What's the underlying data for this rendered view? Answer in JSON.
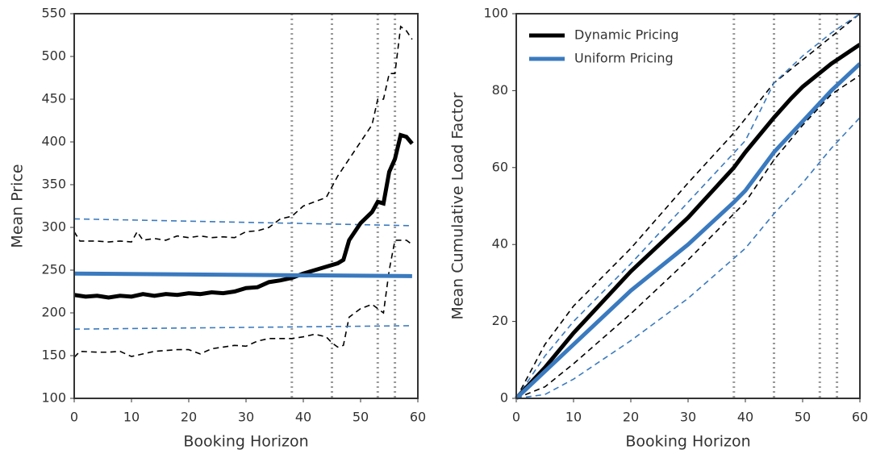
{
  "chart_data": [
    {
      "type": "line",
      "xlabel": "Booking Horizon",
      "ylabel": "Mean Price",
      "xlim": [
        0,
        60
      ],
      "ylim": [
        100,
        550
      ],
      "xticks": [
        0,
        10,
        20,
        30,
        40,
        50,
        60
      ],
      "yticks": [
        100,
        150,
        200,
        250,
        300,
        350,
        400,
        450,
        500,
        550
      ],
      "vlines": [
        38,
        45,
        53,
        56
      ],
      "series": [
        {
          "color": "#000000",
          "dashed": true,
          "x": [
            0,
            1,
            4,
            6,
            8,
            10,
            11,
            12,
            14,
            16,
            18,
            20,
            22,
            24,
            26,
            28,
            30,
            32,
            34,
            36,
            38,
            40,
            42,
            44,
            46,
            48,
            50,
            52,
            53,
            54,
            55,
            56,
            57,
            58,
            59
          ],
          "values": [
            295,
            284,
            284,
            283,
            284,
            283,
            295,
            285,
            287,
            285,
            290,
            288,
            290,
            288,
            289,
            288,
            295,
            296,
            300,
            310,
            313,
            325,
            330,
            335,
            360,
            380,
            400,
            420,
            450,
            450,
            480,
            480,
            535,
            530,
            520
          ]
        },
        {
          "color": "#000000",
          "dashed": true,
          "x": [
            0,
            1,
            4,
            6,
            8,
            10,
            12,
            14,
            16,
            18,
            20,
            22,
            24,
            26,
            28,
            30,
            32,
            34,
            36,
            38,
            40,
            42,
            44,
            45,
            46,
            47,
            48,
            50,
            52,
            54,
            55,
            56,
            58,
            59
          ],
          "values": [
            148,
            155,
            154,
            154,
            155,
            149,
            152,
            155,
            156,
            157,
            157,
            152,
            158,
            160,
            162,
            161,
            167,
            170,
            170,
            170,
            172,
            175,
            172,
            165,
            160,
            162,
            195,
            205,
            210,
            200,
            250,
            285,
            285,
            280
          ]
        },
        {
          "color": "#3a7abf",
          "dashed": true,
          "x": [
            0,
            59
          ],
          "values": [
            310,
            302
          ]
        },
        {
          "color": "#3a7abf",
          "dashed": true,
          "x": [
            0,
            59
          ],
          "values": [
            181,
            185
          ]
        },
        {
          "color": "#000000",
          "dashed": false,
          "x": [
            0,
            2,
            4,
            6,
            8,
            10,
            12,
            14,
            16,
            18,
            20,
            22,
            24,
            26,
            28,
            30,
            32,
            34,
            36,
            38,
            40,
            42,
            44,
            46,
            47,
            48,
            50,
            52,
            53,
            54,
            55,
            56,
            57,
            58,
            59
          ],
          "values": [
            221,
            219,
            220,
            218,
            220,
            219,
            222,
            220,
            222,
            221,
            223,
            222,
            224,
            223,
            225,
            229,
            230,
            236,
            238,
            241,
            246,
            250,
            254,
            258,
            262,
            285,
            305,
            318,
            330,
            328,
            365,
            380,
            408,
            406,
            398
          ]
        },
        {
          "color": "#3a7abf",
          "dashed": false,
          "x": [
            0,
            59
          ],
          "values": [
            246,
            243
          ]
        }
      ]
    },
    {
      "type": "line",
      "xlabel": "Booking Horizon",
      "ylabel": "Mean Cumulative Load Factor",
      "xlim": [
        0,
        60
      ],
      "ylim": [
        0,
        100
      ],
      "xticks": [
        0,
        10,
        20,
        30,
        40,
        50,
        60
      ],
      "yticks": [
        0,
        20,
        40,
        60,
        80,
        100
      ],
      "vlines": [
        38,
        45,
        53,
        56
      ],
      "legend": "upper left",
      "series": [
        {
          "color": "#000000",
          "dashed": true,
          "x": [
            0,
            5,
            10,
            20,
            30,
            38,
            45,
            50,
            55,
            60
          ],
          "values": [
            0,
            14,
            24,
            39,
            56,
            69,
            82,
            88,
            94,
            100
          ]
        },
        {
          "color": "#000000",
          "dashed": true,
          "x": [
            0,
            5,
            10,
            20,
            30,
            40,
            45,
            50,
            55,
            60
          ],
          "values": [
            0,
            3,
            9,
            22,
            36,
            51,
            62,
            71,
            79,
            84
          ]
        },
        {
          "color": "#3a7abf",
          "dashed": true,
          "x": [
            0,
            5,
            10,
            20,
            30,
            40,
            45,
            50,
            55,
            60
          ],
          "values": [
            0,
            11,
            20,
            35,
            51,
            67,
            82,
            89,
            95,
            100
          ]
        },
        {
          "color": "#3a7abf",
          "dashed": true,
          "x": [
            0,
            5,
            10,
            20,
            30,
            40,
            45,
            50,
            55,
            60
          ],
          "values": [
            0,
            1,
            5,
            15,
            26,
            39,
            48,
            56,
            65,
            73
          ]
        },
        {
          "name": "Dynamic Pricing",
          "color": "#000000",
          "dashed": false,
          "x": [
            0,
            5,
            10,
            20,
            30,
            38,
            40,
            45,
            48,
            50,
            55,
            60
          ],
          "values": [
            0,
            8,
            17,
            33,
            47,
            60,
            64,
            73,
            78,
            81,
            87,
            92
          ]
        },
        {
          "name": "Uniform Pricing",
          "color": "#3a7abf",
          "dashed": false,
          "x": [
            0,
            5,
            10,
            20,
            30,
            38,
            40,
            45,
            50,
            55,
            60
          ],
          "values": [
            0,
            7,
            14,
            28,
            40,
            51,
            54,
            64,
            72,
            80,
            87
          ]
        }
      ]
    }
  ]
}
